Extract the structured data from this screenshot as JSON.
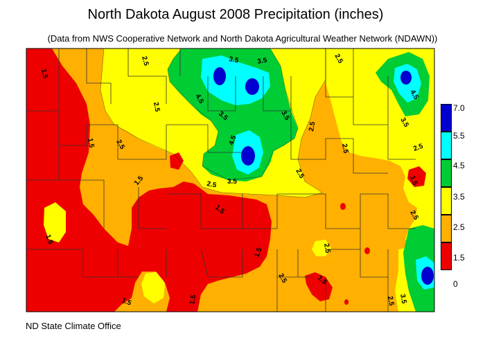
{
  "title": "North Dakota August 2008 Precipitation (inches)",
  "subtitle": "(Data from NWS Cooperative Network and North Dakota Agricultural Weather Network (NDAWN))",
  "credit": "ND State Climate Office",
  "legend": {
    "levels": [
      {
        "label": "7.0",
        "color": "#0000d0"
      },
      {
        "label": "5.5",
        "color": "#00ffff"
      },
      {
        "label": "4.5",
        "color": "#00cc33"
      },
      {
        "label": "3.5",
        "color": "#ffff00"
      },
      {
        "label": "2.5",
        "color": "#ffb000"
      },
      {
        "label": "1.5",
        "color": "#ee0000"
      },
      {
        "label": "0",
        "color": ""
      }
    ]
  },
  "contour_labels": [
    "1.5",
    "1.5",
    "1.5",
    "1.5",
    "1.5",
    "1.5",
    "1.5",
    "1.5",
    "1.5",
    "1.5",
    "2.5",
    "2.5",
    "2.5",
    "2.5",
    "2.5",
    "2.5",
    "2.5",
    "2.5",
    "2.5",
    "2.5",
    "2.5",
    "2.5",
    "2.5",
    "3.5",
    "3.5",
    "3.5",
    "3.5",
    "3.5",
    "3.5",
    "3.5",
    "4.5",
    "4.5",
    "4.5"
  ],
  "colors": {
    "red": "#ee0000",
    "orange": "#ffb000",
    "yellow": "#ffff00",
    "green": "#00cc33",
    "cyan": "#00ffff",
    "blue": "#0000d0"
  }
}
